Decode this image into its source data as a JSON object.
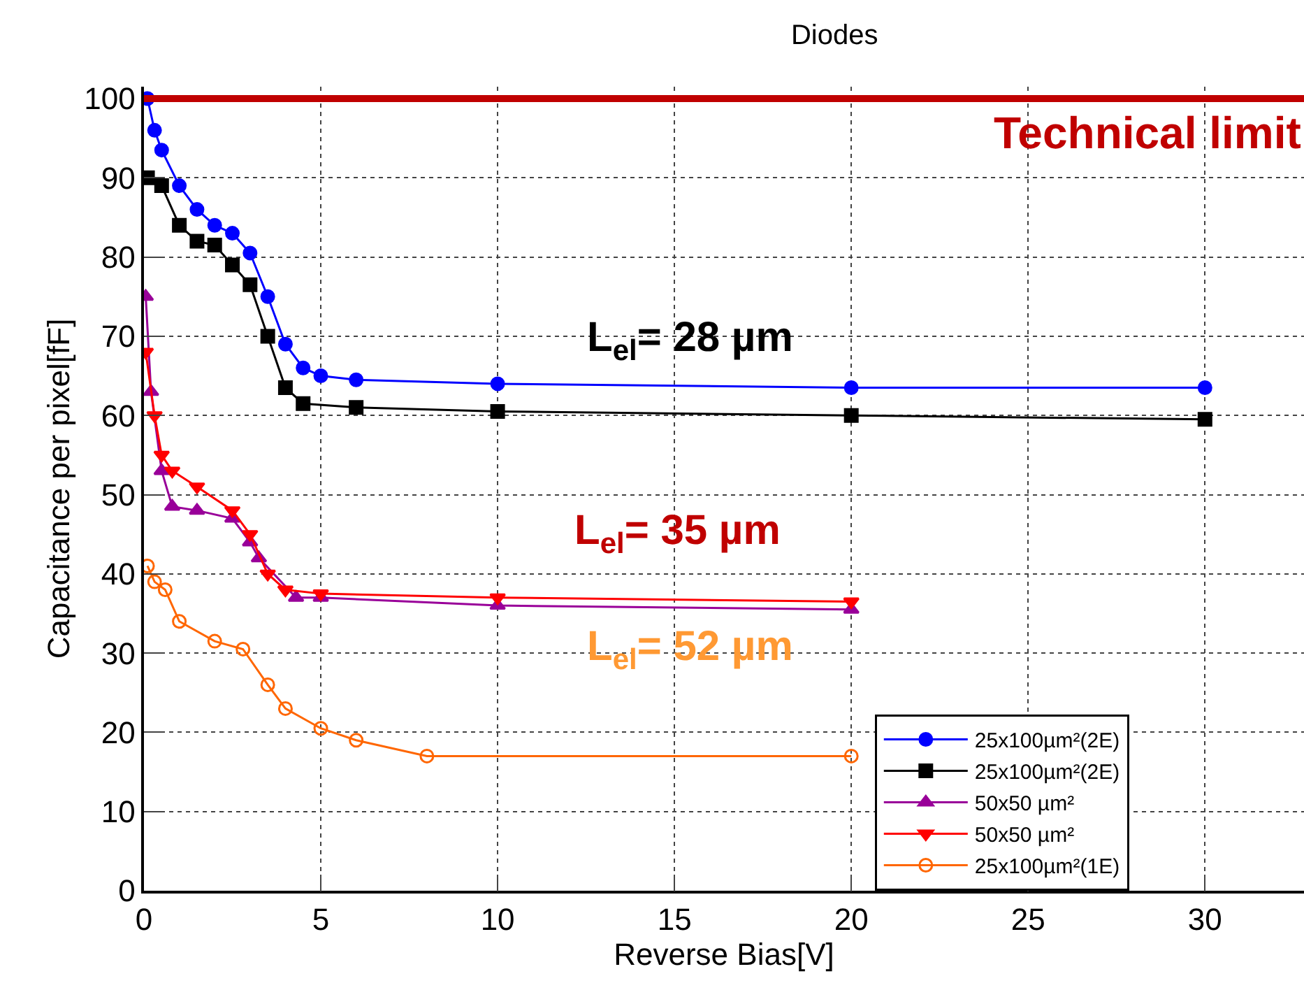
{
  "chart_data": {
    "type": "line",
    "title": "Diodes",
    "xlabel": "Reverse Bias[V]",
    "ylabel": "Capacitance per pixel[fF]",
    "xlim": [
      0,
      32.8
    ],
    "ylim": [
      0,
      101.5
    ],
    "xticks": [
      0,
      5,
      10,
      15,
      20,
      25,
      30
    ],
    "yticks": [
      0,
      10,
      20,
      30,
      40,
      50,
      60,
      70,
      80,
      90,
      100
    ],
    "grid": true,
    "legend": "bottom right",
    "line_style": "solid",
    "series": [
      {
        "name": "25x100µm²(2E)",
        "color": "#0000ff",
        "marker": "circle",
        "x": [
          0.1,
          0.3,
          0.5,
          1,
          1.5,
          2,
          2.5,
          3,
          3.5,
          4,
          4.5,
          5,
          6,
          10,
          20,
          30
        ],
        "values": [
          100,
          96,
          93.5,
          89,
          86,
          84,
          83,
          80.5,
          75,
          69,
          66,
          65,
          64.5,
          64,
          63.5,
          63.5
        ]
      },
      {
        "name": "25x100µm²(2E)",
        "color": "#000000",
        "marker": "square",
        "x": [
          0.1,
          0.5,
          1,
          1.5,
          2,
          2.5,
          3,
          3.5,
          4,
          4.5,
          6,
          10,
          20,
          30
        ],
        "values": [
          90,
          89,
          84,
          82,
          81.5,
          79,
          76.5,
          70,
          63.5,
          61.5,
          61,
          60.5,
          60,
          59.5
        ]
      },
      {
        "name": "50x50 µm²",
        "color": "#990099",
        "marker": "triangle",
        "x": [
          0.05,
          0.2,
          0.5,
          0.8,
          1.5,
          2.5,
          3,
          3.25,
          4.3,
          5,
          10,
          20
        ],
        "values": [
          75,
          63,
          53,
          48.5,
          48,
          47,
          44,
          42,
          37,
          37,
          36,
          35.5
        ]
      },
      {
        "name": "50x50 µm²",
        "color": "#ff0000",
        "marker": "triangle-down",
        "x": [
          0.05,
          0.3,
          0.5,
          0.8,
          1.5,
          2.5,
          3,
          3.5,
          4,
          5,
          10,
          20
        ],
        "values": [
          68,
          60,
          55,
          53,
          51,
          48,
          45,
          40,
          38,
          37.5,
          37,
          36.5
        ]
      },
      {
        "name": "25x100µm²(1E)",
        "color": "#ff6600",
        "marker": "open-circle",
        "x": [
          0.1,
          0.3,
          0.6,
          1,
          2,
          2.8,
          3.5,
          4,
          5,
          6,
          8,
          20
        ],
        "values": [
          41,
          39,
          38,
          34,
          31.5,
          30.5,
          26,
          23,
          20.5,
          19,
          17,
          17
        ]
      }
    ],
    "ref_lines": [
      {
        "axis": "y",
        "value": 100,
        "label": "Technical limit",
        "color": "#c00000"
      }
    ],
    "annotations": [
      "L$_{el}$= 28 µm",
      "L$_{el}$= 35 µm",
      "L$_{el}$= 52 µm"
    ]
  }
}
